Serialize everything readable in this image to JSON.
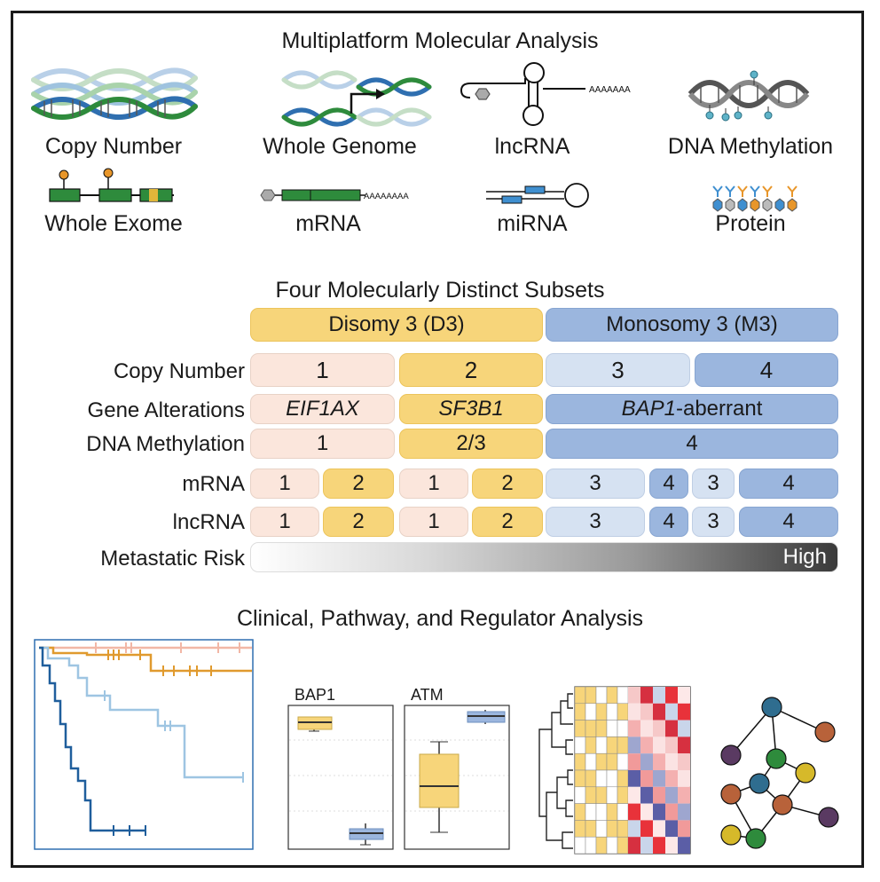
{
  "header": {
    "title": "Multiplatform Molecular Analysis"
  },
  "platforms": [
    {
      "label": "Copy Number",
      "icon": "dna-helix-stack-icon"
    },
    {
      "label": "Whole Genome",
      "icon": "dna-rearrangement-icon"
    },
    {
      "label": "lncRNA",
      "icon": "lncrna-hairpin-icon"
    },
    {
      "label": "DNA Methylation",
      "icon": "methylated-dna-icon"
    },
    {
      "label": "Whole Exome",
      "icon": "exome-mutation-icon"
    },
    {
      "label": "mRNA",
      "icon": "mrna-transcript-icon"
    },
    {
      "label": "miRNA",
      "icon": "mirna-hairpin-icon"
    },
    {
      "label": "Protein",
      "icon": "protein-phospho-icon"
    }
  ],
  "subsets": {
    "title": "Four Molecularly Distinct Subsets",
    "groups": [
      "Disomy 3 (D3)",
      "Monosomy 3 (M3)"
    ],
    "rows": {
      "copy_number": {
        "label": "Copy Number",
        "cells": [
          "1",
          "2",
          "3",
          "4"
        ]
      },
      "gene_alterations": {
        "label": "Gene Alterations",
        "cells": [
          "EIF1AX",
          "SF3B1",
          "BAP1",
          "-aberrant"
        ]
      },
      "dna_methylation": {
        "label": "DNA Methylation",
        "cells": [
          "1",
          "2/3",
          "4"
        ]
      },
      "mrna": {
        "label": "mRNA",
        "cells": [
          "1",
          "2",
          "1",
          "2",
          "3",
          "4",
          "3",
          "4"
        ]
      },
      "lncrna": {
        "label": "lncRNA",
        "cells": [
          "1",
          "2",
          "1",
          "2",
          "3",
          "4",
          "3",
          "4"
        ]
      },
      "metastatic_risk": {
        "label": "Metastatic Risk",
        "end_label": "High"
      }
    }
  },
  "clinical": {
    "title": "Clinical, Pathway, and Regulator Analysis",
    "boxplot_labels": [
      "BAP1",
      "ATM"
    ]
  },
  "colors": {
    "subset1": "#fbe6dc",
    "subset2": "#f7d57a",
    "subset3": "#d6e2f2",
    "subset4": "#9bb6de",
    "dna_green": "#2e8b3c",
    "dna_blue": "#2f6fb0",
    "orange": "#e8962a",
    "gray": "#606060"
  }
}
